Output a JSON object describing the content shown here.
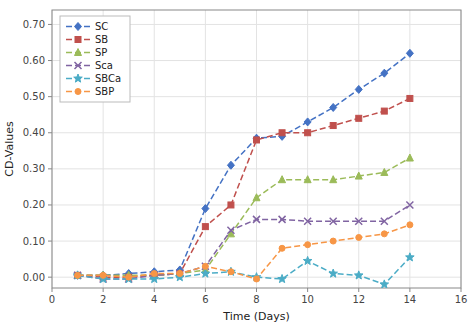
{
  "chart_data": {
    "type": "line",
    "xlabel": "Time (Days)",
    "ylabel": "CD-Values",
    "x": [
      1,
      2,
      3,
      4,
      5,
      6,
      7,
      8,
      9,
      10,
      11,
      12,
      13,
      14
    ],
    "series": [
      {
        "name": "SC",
        "color": "#4472C4",
        "marker": "diamond",
        "line_style": "dashed",
        "values": [
          0.005,
          0.005,
          0.01,
          0.015,
          0.02,
          0.19,
          0.31,
          0.385,
          0.39,
          0.43,
          0.47,
          0.52,
          0.565,
          0.62
        ]
      },
      {
        "name": "SB",
        "color": "#C0504D",
        "marker": "square",
        "line_style": "dashed",
        "values": [
          0.005,
          0.0,
          0.0,
          0.005,
          0.01,
          0.14,
          0.2,
          0.38,
          0.4,
          0.4,
          0.42,
          0.44,
          0.46,
          0.495
        ]
      },
      {
        "name": "SP",
        "color": "#9BBB59",
        "marker": "triangle",
        "line_style": "dashed",
        "values": [
          0.005,
          0.005,
          0.005,
          0.005,
          0.01,
          0.02,
          0.12,
          0.22,
          0.27,
          0.27,
          0.27,
          0.28,
          0.29,
          0.33
        ]
      },
      {
        "name": "Sca",
        "color": "#8064A2",
        "marker": "x",
        "line_style": "dashed",
        "values": [
          0.005,
          -0.005,
          -0.005,
          0.005,
          0.01,
          0.03,
          0.13,
          0.16,
          0.16,
          0.155,
          0.155,
          0.155,
          0.155,
          0.2
        ]
      },
      {
        "name": "SBCa",
        "color": "#4BACC6",
        "marker": "star",
        "line_style": "dashed",
        "values": [
          0.005,
          -0.005,
          -0.005,
          -0.005,
          0.0,
          0.01,
          0.015,
          0.0,
          -0.005,
          0.045,
          0.01,
          0.005,
          -0.02,
          0.055
        ]
      },
      {
        "name": "SBP",
        "color": "#F79646",
        "marker": "circle",
        "line_style": "dashed",
        "values": [
          0.005,
          0.005,
          0.0,
          0.01,
          0.01,
          0.03,
          0.015,
          -0.005,
          0.08,
          0.09,
          0.1,
          0.11,
          0.12,
          0.145
        ]
      }
    ],
    "xlim": [
      0,
      16
    ],
    "ylim": [
      -0.03,
      0.74
    ],
    "xticks": [
      0,
      2,
      4,
      6,
      8,
      10,
      12,
      14,
      16
    ],
    "yticks": [
      {
        "value": 0.0,
        "label": "0.00"
      },
      {
        "value": 0.1,
        "label": "0.10"
      },
      {
        "value": 0.2,
        "label": "0.20"
      },
      {
        "value": 0.3,
        "label": "0.30"
      },
      {
        "value": 0.4,
        "label": "0.40"
      },
      {
        "value": 0.5,
        "label": "0.50"
      },
      {
        "value": 0.6,
        "label": "0.60"
      },
      {
        "value": 0.7,
        "label": "0.70"
      }
    ],
    "grid": true,
    "legend": "upper left"
  }
}
